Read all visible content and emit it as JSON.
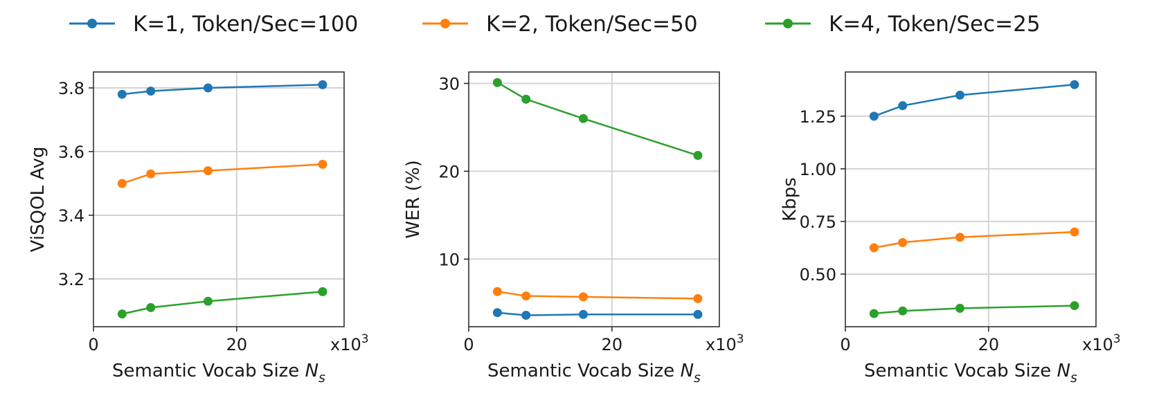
{
  "legend": [
    {
      "label": "K=1, Token/Sec=100",
      "color": "#1f77b4"
    },
    {
      "label": "K=2, Token/Sec=50",
      "color": "#ff7f0e"
    },
    {
      "label": "K=4, Token/Sec=25",
      "color": "#2ca02c"
    }
  ],
  "chart_data": [
    {
      "type": "line",
      "xlabel": "Semantic Vocab Size N_s",
      "xlabel_main": "Semantic Vocab Size ",
      "xlabel_var": "N",
      "xlabel_sub": "s",
      "ylabel": "ViSQOL Avg",
      "x_multiplier": "x10",
      "x_multiplier_exp": "3",
      "xlim": [
        0,
        35
      ],
      "ylim": [
        3.05,
        3.85
      ],
      "xticks": [
        0,
        20
      ],
      "yticks": [
        3.2,
        3.4,
        3.6,
        3.8
      ],
      "ytick_labels": [
        "3.2",
        "3.4",
        "3.6",
        "3.8"
      ],
      "grid": true,
      "x": [
        4,
        8,
        16,
        32
      ],
      "series": [
        {
          "name": "K=1, Token/Sec=100",
          "color": "#1f77b4",
          "values": [
            3.78,
            3.79,
            3.8,
            3.81
          ]
        },
        {
          "name": "K=2, Token/Sec=50",
          "color": "#ff7f0e",
          "values": [
            3.5,
            3.53,
            3.54,
            3.56
          ]
        },
        {
          "name": "K=4, Token/Sec=25",
          "color": "#2ca02c",
          "values": [
            3.09,
            3.11,
            3.13,
            3.16
          ]
        }
      ]
    },
    {
      "type": "line",
      "xlabel": "Semantic Vocab Size N_s",
      "xlabel_main": "Semantic Vocab Size ",
      "xlabel_var": "N",
      "xlabel_sub": "s",
      "ylabel": "WER (%)",
      "x_multiplier": "x10",
      "x_multiplier_exp": "3",
      "xlim": [
        0,
        35
      ],
      "ylim": [
        2.3,
        31.3
      ],
      "xticks": [
        0,
        20
      ],
      "yticks": [
        10,
        20,
        30
      ],
      "ytick_labels": [
        "10",
        "20",
        "30"
      ],
      "grid": true,
      "x": [
        4,
        8,
        16,
        32
      ],
      "series": [
        {
          "name": "K=1, Token/Sec=100",
          "color": "#1f77b4",
          "values": [
            3.9,
            3.6,
            3.7,
            3.7
          ]
        },
        {
          "name": "K=2, Token/Sec=50",
          "color": "#ff7f0e",
          "values": [
            6.3,
            5.8,
            5.7,
            5.5
          ]
        },
        {
          "name": "K=4, Token/Sec=25",
          "color": "#2ca02c",
          "values": [
            30.1,
            28.2,
            26.0,
            21.8
          ]
        }
      ]
    },
    {
      "type": "line",
      "xlabel": "Semantic Vocab Size N_s",
      "xlabel_main": "Semantic Vocab Size ",
      "xlabel_var": "N",
      "xlabel_sub": "s",
      "ylabel": "Kbps",
      "x_multiplier": "x10",
      "x_multiplier_exp": "3",
      "xlim": [
        0,
        35
      ],
      "ylim": [
        0.25,
        1.46
      ],
      "xticks": [
        0,
        20
      ],
      "yticks": [
        0.5,
        0.75,
        1.0,
        1.25
      ],
      "ytick_labels": [
        "0.50",
        "0.75",
        "1.00",
        "1.25"
      ],
      "grid": true,
      "x": [
        4,
        8,
        16,
        32
      ],
      "series": [
        {
          "name": "K=1, Token/Sec=100",
          "color": "#1f77b4",
          "values": [
            1.25,
            1.3,
            1.35,
            1.4
          ]
        },
        {
          "name": "K=2, Token/Sec=50",
          "color": "#ff7f0e",
          "values": [
            0.625,
            0.65,
            0.675,
            0.7
          ]
        },
        {
          "name": "K=4, Token/Sec=25",
          "color": "#2ca02c",
          "values": [
            0.3125,
            0.325,
            0.3375,
            0.35
          ]
        }
      ]
    }
  ]
}
